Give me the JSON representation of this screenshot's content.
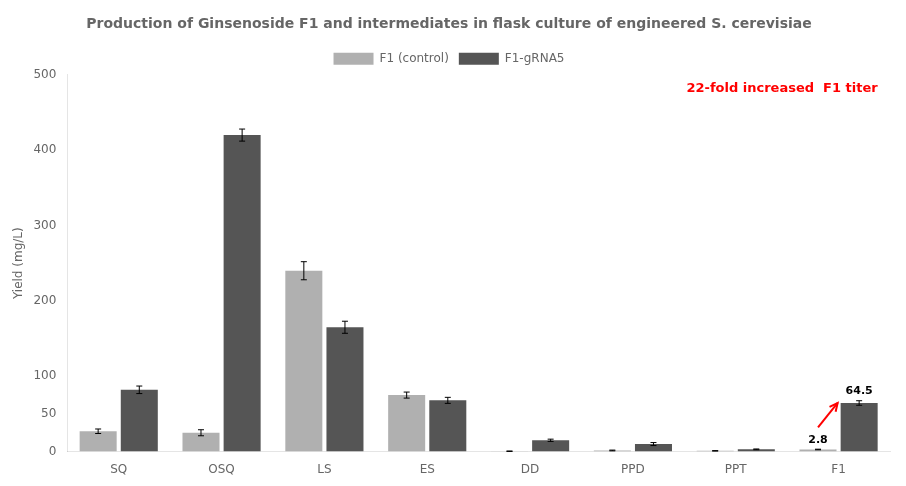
{
  "chart_data": {
    "type": "bar",
    "title": "Production of Ginsenoside F1 and intermediates in flask culture of engineered S. cerevisiae",
    "ylabel": "Yield (mg/L)",
    "categories": [
      "SQ",
      "OSQ",
      "LS",
      "ES",
      "DD",
      "PPD",
      "PPT",
      "F1"
    ],
    "series": [
      {
        "name": "F1 (control)",
        "color": "#b0b0b0",
        "values": [
          27,
          25,
          240,
          75,
          0.5,
          1.5,
          1.0,
          2.8
        ],
        "errors": [
          3,
          4,
          12,
          4,
          0.3,
          0.5,
          0.3,
          0.4
        ]
      },
      {
        "name": "F1-gRNA5",
        "color": "#555555",
        "values": [
          82,
          420,
          165,
          68,
          15,
          10,
          3,
          64.5
        ],
        "errors": [
          5,
          8,
          8,
          4,
          1.5,
          2,
          0.5,
          3
        ]
      }
    ],
    "ylim": [
      0,
      500
    ],
    "yticks": [
      0,
      50,
      100,
      200,
      300,
      400,
      500
    ],
    "grid": false,
    "legend": "top",
    "annotations": [
      {
        "text": "22-fold increased  F1 titer",
        "x": "F1",
        "y": 490,
        "color": "red"
      },
      {
        "text": "2.8",
        "x": "F1",
        "series": "F1 (control)",
        "y": 2.8
      },
      {
        "text": "64.5",
        "x": "F1",
        "series": "F1-gRNA5",
        "y": 64.5
      }
    ],
    "arrows": [
      {
        "x": "F1",
        "from": {
          "series": "F1 (control)",
          "y": 2.8
        },
        "to": {
          "series": "F1-gRNA5",
          "y": 64.5
        },
        "color": "red"
      }
    ]
  }
}
